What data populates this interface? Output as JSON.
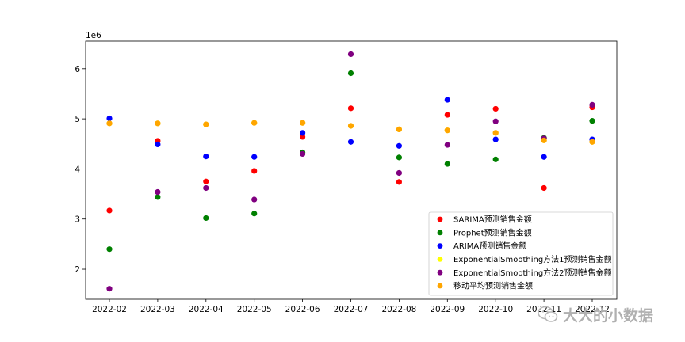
{
  "chart_data": {
    "type": "scatter",
    "x": [
      "2022-02",
      "2022-03",
      "2022-04",
      "2022-05",
      "2022-06",
      "2022-07",
      "2022-08",
      "2022-09",
      "2022-10",
      "2022-11",
      "2022-12"
    ],
    "x_tick_labels": [
      "2022-02",
      "2022-03",
      "2022-04",
      "2022-05",
      "2022-06",
      "2022-07",
      "2022-08",
      "2022-09",
      "2022-10",
      "2022-11",
      "2022-12"
    ],
    "y_tick_labels": [
      "2",
      "3",
      "4",
      "5",
      "6"
    ],
    "y_ticks": [
      2000000,
      3000000,
      4000000,
      5000000,
      6000000
    ],
    "y_offset_label": "1e6",
    "ylim": [
      1400000,
      6550000
    ],
    "grid": false,
    "legend_position": "lower right",
    "series": [
      {
        "name": "SARIMA预测销售金额",
        "color": "#ff0000",
        "values": [
          3170000,
          4560000,
          3750000,
          3960000,
          4640000,
          5210000,
          3740000,
          5080000,
          5200000,
          3620000,
          5230000
        ]
      },
      {
        "name": "Prophet预测销售金额",
        "color": "#008000",
        "values": [
          2400000,
          3440000,
          3020000,
          3110000,
          4330000,
          5910000,
          4230000,
          4100000,
          4190000,
          4620000,
          4960000
        ]
      },
      {
        "name": "ARIMA预测销售金额",
        "color": "#0000ff",
        "values": [
          5010000,
          4490000,
          4250000,
          4240000,
          4720000,
          4540000,
          4460000,
          5380000,
          4590000,
          4240000,
          4590000
        ]
      },
      {
        "name": "ExponentialSmoothing方法1预测销售金额",
        "color": "#ffff00",
        "values": [
          4910000,
          4910000,
          4890000,
          4920000,
          4920000,
          4860000,
          4790000,
          4770000,
          4720000,
          4570000,
          4540000
        ]
      },
      {
        "name": "ExponentialSmoothing方法2预测销售金额",
        "color": "#800080",
        "values": [
          1610000,
          3540000,
          3620000,
          3390000,
          4300000,
          6290000,
          3920000,
          4480000,
          4950000,
          4610000,
          5280000
        ]
      },
      {
        "name": "移动平均预测销售金额",
        "color": "#ffa500",
        "values": [
          4910000,
          4910000,
          4890000,
          4920000,
          4920000,
          4860000,
          4790000,
          4770000,
          4720000,
          4570000,
          4540000
        ]
      }
    ]
  },
  "watermark": {
    "text": "大大的小数据",
    "icon": "wechat-icon"
  }
}
